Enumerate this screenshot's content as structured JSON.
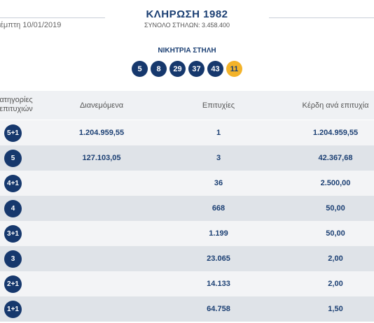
{
  "header": {
    "date": "έμπτη 10/01/2019",
    "title": "ΚΛΗΡΩΣΗ 1982",
    "subtitle": "ΣΥΝΟΛΟ ΣΤΗΛΩΝ: 3.458.400"
  },
  "winning": {
    "label": "ΝΙΚΗΤΡΙΑ ΣΤΗΛΗ",
    "numbers": [
      "5",
      "8",
      "29",
      "37",
      "43"
    ],
    "bonus": "11"
  },
  "table": {
    "columns": {
      "categories": "ατηγορίες\nεπιτυχιών",
      "distributed": "Διανεμόμενα",
      "winners": "Επιτυχίες",
      "prize": "Κέρδη ανά επιτυχία"
    },
    "rows": [
      {
        "category": "5+1",
        "distributed": "1.204.959,55",
        "winners": "1",
        "prize": "1.204.959,55"
      },
      {
        "category": "5",
        "distributed": "127.103,05",
        "winners": "3",
        "prize": "42.367,68"
      },
      {
        "category": "4+1",
        "distributed": "",
        "winners": "36",
        "prize": "2.500,00"
      },
      {
        "category": "4",
        "distributed": "",
        "winners": "668",
        "prize": "50,00"
      },
      {
        "category": "3+1",
        "distributed": "",
        "winners": "1.199",
        "prize": "50,00"
      },
      {
        "category": "3",
        "distributed": "",
        "winners": "23.065",
        "prize": "2,00"
      },
      {
        "category": "2+1",
        "distributed": "",
        "winners": "14.133",
        "prize": "2,00"
      },
      {
        "category": "1+1",
        "distributed": "",
        "winners": "64.758",
        "prize": "1,50"
      }
    ]
  },
  "colors": {
    "navy": "#16386d",
    "bonus": "#f3b32a",
    "row_alt": "#dfe3e8",
    "row_light": "#f3f4f6"
  }
}
